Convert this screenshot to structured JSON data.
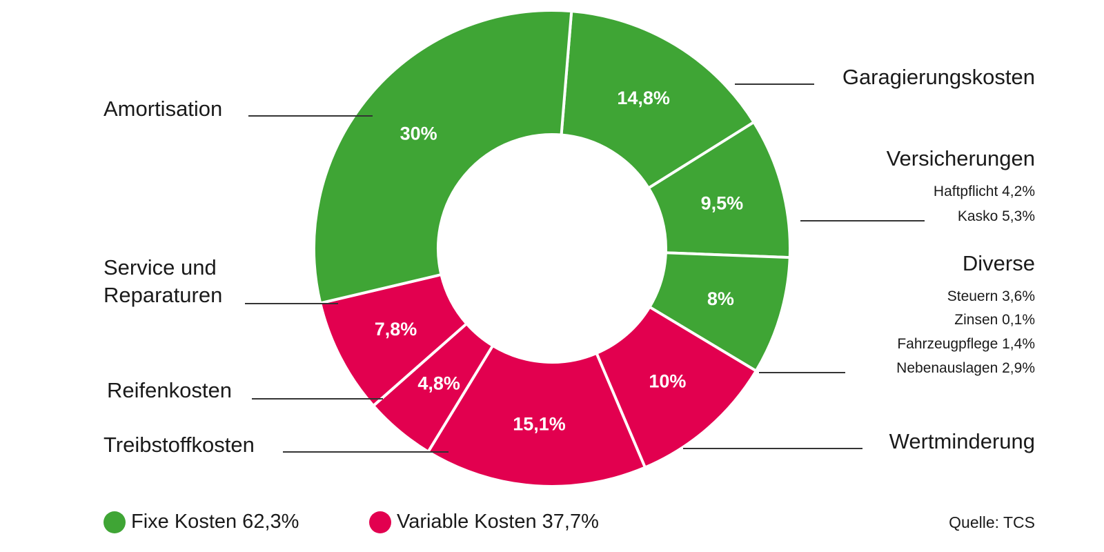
{
  "colors": {
    "fixed": "#3fa535",
    "variable": "#e2004f"
  },
  "chart_data": {
    "type": "pie",
    "variant": "donut",
    "slices": [
      {
        "label": "Garagierungskosten",
        "value": 14.8,
        "display": "14,8%",
        "group": "fixed",
        "sub": []
      },
      {
        "label": "Versicherungen",
        "value": 9.5,
        "display": "9,5%",
        "group": "fixed",
        "sub": [
          "Haftpflicht 4,2%",
          "Kasko 5,3%"
        ]
      },
      {
        "label": "Diverse",
        "value": 8,
        "display": "8%",
        "group": "fixed",
        "sub": [
          "Steuern 3,6%",
          "Zinsen 0,1%",
          "Fahrzeugpflege 1,4%",
          "Nebenauslagen 2,9%"
        ]
      },
      {
        "label": "Wertminderung",
        "value": 10,
        "display": "10%",
        "group": "variable",
        "sub": []
      },
      {
        "label": "Treibstoffkosten",
        "value": 15.1,
        "display": "15,1%",
        "group": "variable",
        "sub": []
      },
      {
        "label": "Reifenkosten",
        "value": 4.8,
        "display": "4,8%",
        "group": "variable",
        "sub": []
      },
      {
        "label": "Service und Reparaturen",
        "label_lines": [
          "Service und",
          "Reparaturen"
        ],
        "value": 7.8,
        "display": "7,8%",
        "group": "variable",
        "sub": []
      },
      {
        "label": "Amortisation",
        "value": 30,
        "display": "30%",
        "group": "fixed",
        "sub": []
      }
    ]
  },
  "legend": {
    "fixed_label": "Fixe Kosten 62,3%",
    "variable_label": "Variable Kosten 37,7%"
  },
  "source": "Quelle: TCS"
}
